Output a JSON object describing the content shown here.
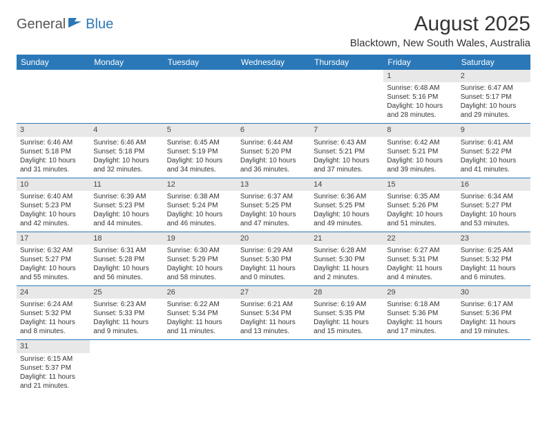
{
  "logo": {
    "part1": "General",
    "part2": "Blue"
  },
  "title": "August 2025",
  "subtitle": "Blacktown, New South Wales, Australia",
  "dayHeaders": [
    "Sunday",
    "Monday",
    "Tuesday",
    "Wednesday",
    "Thursday",
    "Friday",
    "Saturday"
  ],
  "colors": {
    "headerBg": "#2a78b8",
    "headerText": "#ffffff",
    "dayNumBg": "#e8e8e8",
    "rowBorder": "#2a78b8",
    "logoBlue": "#2a78b8"
  },
  "weeks": [
    [
      null,
      null,
      null,
      null,
      null,
      {
        "n": "1",
        "sunrise": "Sunrise: 6:48 AM",
        "sunset": "Sunset: 5:16 PM",
        "dl1": "Daylight: 10 hours",
        "dl2": "and 28 minutes."
      },
      {
        "n": "2",
        "sunrise": "Sunrise: 6:47 AM",
        "sunset": "Sunset: 5:17 PM",
        "dl1": "Daylight: 10 hours",
        "dl2": "and 29 minutes."
      }
    ],
    [
      {
        "n": "3",
        "sunrise": "Sunrise: 6:46 AM",
        "sunset": "Sunset: 5:18 PM",
        "dl1": "Daylight: 10 hours",
        "dl2": "and 31 minutes."
      },
      {
        "n": "4",
        "sunrise": "Sunrise: 6:46 AM",
        "sunset": "Sunset: 5:18 PM",
        "dl1": "Daylight: 10 hours",
        "dl2": "and 32 minutes."
      },
      {
        "n": "5",
        "sunrise": "Sunrise: 6:45 AM",
        "sunset": "Sunset: 5:19 PM",
        "dl1": "Daylight: 10 hours",
        "dl2": "and 34 minutes."
      },
      {
        "n": "6",
        "sunrise": "Sunrise: 6:44 AM",
        "sunset": "Sunset: 5:20 PM",
        "dl1": "Daylight: 10 hours",
        "dl2": "and 36 minutes."
      },
      {
        "n": "7",
        "sunrise": "Sunrise: 6:43 AM",
        "sunset": "Sunset: 5:21 PM",
        "dl1": "Daylight: 10 hours",
        "dl2": "and 37 minutes."
      },
      {
        "n": "8",
        "sunrise": "Sunrise: 6:42 AM",
        "sunset": "Sunset: 5:21 PM",
        "dl1": "Daylight: 10 hours",
        "dl2": "and 39 minutes."
      },
      {
        "n": "9",
        "sunrise": "Sunrise: 6:41 AM",
        "sunset": "Sunset: 5:22 PM",
        "dl1": "Daylight: 10 hours",
        "dl2": "and 41 minutes."
      }
    ],
    [
      {
        "n": "10",
        "sunrise": "Sunrise: 6:40 AM",
        "sunset": "Sunset: 5:23 PM",
        "dl1": "Daylight: 10 hours",
        "dl2": "and 42 minutes."
      },
      {
        "n": "11",
        "sunrise": "Sunrise: 6:39 AM",
        "sunset": "Sunset: 5:23 PM",
        "dl1": "Daylight: 10 hours",
        "dl2": "and 44 minutes."
      },
      {
        "n": "12",
        "sunrise": "Sunrise: 6:38 AM",
        "sunset": "Sunset: 5:24 PM",
        "dl1": "Daylight: 10 hours",
        "dl2": "and 46 minutes."
      },
      {
        "n": "13",
        "sunrise": "Sunrise: 6:37 AM",
        "sunset": "Sunset: 5:25 PM",
        "dl1": "Daylight: 10 hours",
        "dl2": "and 47 minutes."
      },
      {
        "n": "14",
        "sunrise": "Sunrise: 6:36 AM",
        "sunset": "Sunset: 5:25 PM",
        "dl1": "Daylight: 10 hours",
        "dl2": "and 49 minutes."
      },
      {
        "n": "15",
        "sunrise": "Sunrise: 6:35 AM",
        "sunset": "Sunset: 5:26 PM",
        "dl1": "Daylight: 10 hours",
        "dl2": "and 51 minutes."
      },
      {
        "n": "16",
        "sunrise": "Sunrise: 6:34 AM",
        "sunset": "Sunset: 5:27 PM",
        "dl1": "Daylight: 10 hours",
        "dl2": "and 53 minutes."
      }
    ],
    [
      {
        "n": "17",
        "sunrise": "Sunrise: 6:32 AM",
        "sunset": "Sunset: 5:27 PM",
        "dl1": "Daylight: 10 hours",
        "dl2": "and 55 minutes."
      },
      {
        "n": "18",
        "sunrise": "Sunrise: 6:31 AM",
        "sunset": "Sunset: 5:28 PM",
        "dl1": "Daylight: 10 hours",
        "dl2": "and 56 minutes."
      },
      {
        "n": "19",
        "sunrise": "Sunrise: 6:30 AM",
        "sunset": "Sunset: 5:29 PM",
        "dl1": "Daylight: 10 hours",
        "dl2": "and 58 minutes."
      },
      {
        "n": "20",
        "sunrise": "Sunrise: 6:29 AM",
        "sunset": "Sunset: 5:30 PM",
        "dl1": "Daylight: 11 hours",
        "dl2": "and 0 minutes."
      },
      {
        "n": "21",
        "sunrise": "Sunrise: 6:28 AM",
        "sunset": "Sunset: 5:30 PM",
        "dl1": "Daylight: 11 hours",
        "dl2": "and 2 minutes."
      },
      {
        "n": "22",
        "sunrise": "Sunrise: 6:27 AM",
        "sunset": "Sunset: 5:31 PM",
        "dl1": "Daylight: 11 hours",
        "dl2": "and 4 minutes."
      },
      {
        "n": "23",
        "sunrise": "Sunrise: 6:25 AM",
        "sunset": "Sunset: 5:32 PM",
        "dl1": "Daylight: 11 hours",
        "dl2": "and 6 minutes."
      }
    ],
    [
      {
        "n": "24",
        "sunrise": "Sunrise: 6:24 AM",
        "sunset": "Sunset: 5:32 PM",
        "dl1": "Daylight: 11 hours",
        "dl2": "and 8 minutes."
      },
      {
        "n": "25",
        "sunrise": "Sunrise: 6:23 AM",
        "sunset": "Sunset: 5:33 PM",
        "dl1": "Daylight: 11 hours",
        "dl2": "and 9 minutes."
      },
      {
        "n": "26",
        "sunrise": "Sunrise: 6:22 AM",
        "sunset": "Sunset: 5:34 PM",
        "dl1": "Daylight: 11 hours",
        "dl2": "and 11 minutes."
      },
      {
        "n": "27",
        "sunrise": "Sunrise: 6:21 AM",
        "sunset": "Sunset: 5:34 PM",
        "dl1": "Daylight: 11 hours",
        "dl2": "and 13 minutes."
      },
      {
        "n": "28",
        "sunrise": "Sunrise: 6:19 AM",
        "sunset": "Sunset: 5:35 PM",
        "dl1": "Daylight: 11 hours",
        "dl2": "and 15 minutes."
      },
      {
        "n": "29",
        "sunrise": "Sunrise: 6:18 AM",
        "sunset": "Sunset: 5:36 PM",
        "dl1": "Daylight: 11 hours",
        "dl2": "and 17 minutes."
      },
      {
        "n": "30",
        "sunrise": "Sunrise: 6:17 AM",
        "sunset": "Sunset: 5:36 PM",
        "dl1": "Daylight: 11 hours",
        "dl2": "and 19 minutes."
      }
    ],
    [
      {
        "n": "31",
        "sunrise": "Sunrise: 6:15 AM",
        "sunset": "Sunset: 5:37 PM",
        "dl1": "Daylight: 11 hours",
        "dl2": "and 21 minutes."
      },
      null,
      null,
      null,
      null,
      null,
      null
    ]
  ]
}
